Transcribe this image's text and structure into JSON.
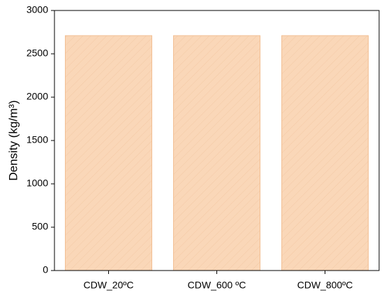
{
  "chart_data": {
    "type": "bar",
    "y_label": "Density (kg/m³)",
    "categories": [
      "CDW_20ºC",
      "CDW_600 ºC",
      "CDW_800ºC"
    ],
    "values": [
      2710,
      2710,
      2710
    ],
    "color": "#fad7b8",
    "edge_color": "#f2bf94",
    "ylim": [
      0,
      3000
    ],
    "yticks": [
      0,
      500,
      1000,
      1500,
      2000,
      2500,
      3000
    ],
    "grid": false
  }
}
